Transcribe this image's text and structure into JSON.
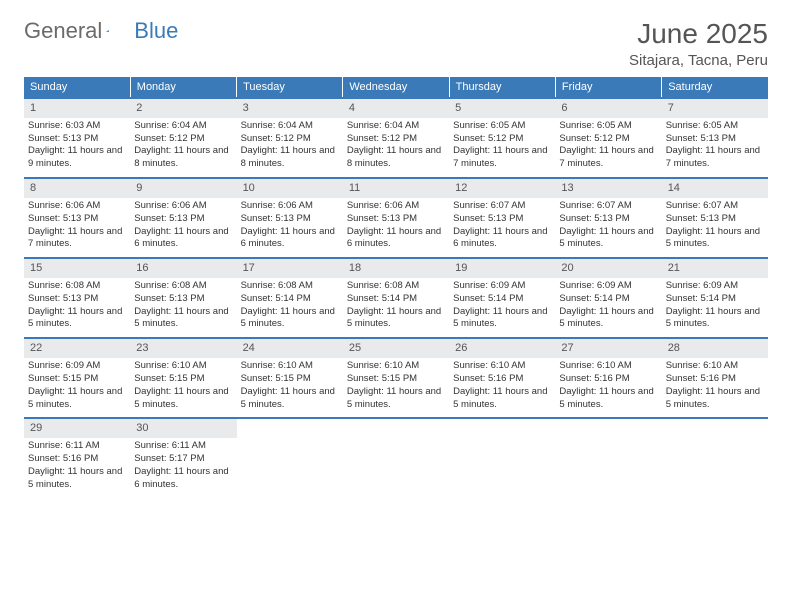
{
  "logo": {
    "part1": "General",
    "part2": "Blue"
  },
  "title": "June 2025",
  "location": "Sitajara, Tacna, Peru",
  "day_names": [
    "Sunday",
    "Monday",
    "Tuesday",
    "Wednesday",
    "Thursday",
    "Friday",
    "Saturday"
  ],
  "colors": {
    "header_bg": "#3a7ab8",
    "header_text": "#ffffff",
    "daynum_bg": "#e8eaec",
    "text": "#333333",
    "title_text": "#555555",
    "logo_gray": "#6b6b6b",
    "logo_blue": "#3a7ab8"
  },
  "weeks": [
    [
      {
        "n": "1",
        "sr": "6:03 AM",
        "ss": "5:13 PM",
        "dl": "11 hours and 9 minutes."
      },
      {
        "n": "2",
        "sr": "6:04 AM",
        "ss": "5:12 PM",
        "dl": "11 hours and 8 minutes."
      },
      {
        "n": "3",
        "sr": "6:04 AM",
        "ss": "5:12 PM",
        "dl": "11 hours and 8 minutes."
      },
      {
        "n": "4",
        "sr": "6:04 AM",
        "ss": "5:12 PM",
        "dl": "11 hours and 8 minutes."
      },
      {
        "n": "5",
        "sr": "6:05 AM",
        "ss": "5:12 PM",
        "dl": "11 hours and 7 minutes."
      },
      {
        "n": "6",
        "sr": "6:05 AM",
        "ss": "5:12 PM",
        "dl": "11 hours and 7 minutes."
      },
      {
        "n": "7",
        "sr": "6:05 AM",
        "ss": "5:13 PM",
        "dl": "11 hours and 7 minutes."
      }
    ],
    [
      {
        "n": "8",
        "sr": "6:06 AM",
        "ss": "5:13 PM",
        "dl": "11 hours and 7 minutes."
      },
      {
        "n": "9",
        "sr": "6:06 AM",
        "ss": "5:13 PM",
        "dl": "11 hours and 6 minutes."
      },
      {
        "n": "10",
        "sr": "6:06 AM",
        "ss": "5:13 PM",
        "dl": "11 hours and 6 minutes."
      },
      {
        "n": "11",
        "sr": "6:06 AM",
        "ss": "5:13 PM",
        "dl": "11 hours and 6 minutes."
      },
      {
        "n": "12",
        "sr": "6:07 AM",
        "ss": "5:13 PM",
        "dl": "11 hours and 6 minutes."
      },
      {
        "n": "13",
        "sr": "6:07 AM",
        "ss": "5:13 PM",
        "dl": "11 hours and 5 minutes."
      },
      {
        "n": "14",
        "sr": "6:07 AM",
        "ss": "5:13 PM",
        "dl": "11 hours and 5 minutes."
      }
    ],
    [
      {
        "n": "15",
        "sr": "6:08 AM",
        "ss": "5:13 PM",
        "dl": "11 hours and 5 minutes."
      },
      {
        "n": "16",
        "sr": "6:08 AM",
        "ss": "5:13 PM",
        "dl": "11 hours and 5 minutes."
      },
      {
        "n": "17",
        "sr": "6:08 AM",
        "ss": "5:14 PM",
        "dl": "11 hours and 5 minutes."
      },
      {
        "n": "18",
        "sr": "6:08 AM",
        "ss": "5:14 PM",
        "dl": "11 hours and 5 minutes."
      },
      {
        "n": "19",
        "sr": "6:09 AM",
        "ss": "5:14 PM",
        "dl": "11 hours and 5 minutes."
      },
      {
        "n": "20",
        "sr": "6:09 AM",
        "ss": "5:14 PM",
        "dl": "11 hours and 5 minutes."
      },
      {
        "n": "21",
        "sr": "6:09 AM",
        "ss": "5:14 PM",
        "dl": "11 hours and 5 minutes."
      }
    ],
    [
      {
        "n": "22",
        "sr": "6:09 AM",
        "ss": "5:15 PM",
        "dl": "11 hours and 5 minutes."
      },
      {
        "n": "23",
        "sr": "6:10 AM",
        "ss": "5:15 PM",
        "dl": "11 hours and 5 minutes."
      },
      {
        "n": "24",
        "sr": "6:10 AM",
        "ss": "5:15 PM",
        "dl": "11 hours and 5 minutes."
      },
      {
        "n": "25",
        "sr": "6:10 AM",
        "ss": "5:15 PM",
        "dl": "11 hours and 5 minutes."
      },
      {
        "n": "26",
        "sr": "6:10 AM",
        "ss": "5:16 PM",
        "dl": "11 hours and 5 minutes."
      },
      {
        "n": "27",
        "sr": "6:10 AM",
        "ss": "5:16 PM",
        "dl": "11 hours and 5 minutes."
      },
      {
        "n": "28",
        "sr": "6:10 AM",
        "ss": "5:16 PM",
        "dl": "11 hours and 5 minutes."
      }
    ],
    [
      {
        "n": "29",
        "sr": "6:11 AM",
        "ss": "5:16 PM",
        "dl": "11 hours and 5 minutes."
      },
      {
        "n": "30",
        "sr": "6:11 AM",
        "ss": "5:17 PM",
        "dl": "11 hours and 6 minutes."
      },
      null,
      null,
      null,
      null,
      null
    ]
  ],
  "labels": {
    "sunrise": "Sunrise:",
    "sunset": "Sunset:",
    "daylight": "Daylight:"
  }
}
